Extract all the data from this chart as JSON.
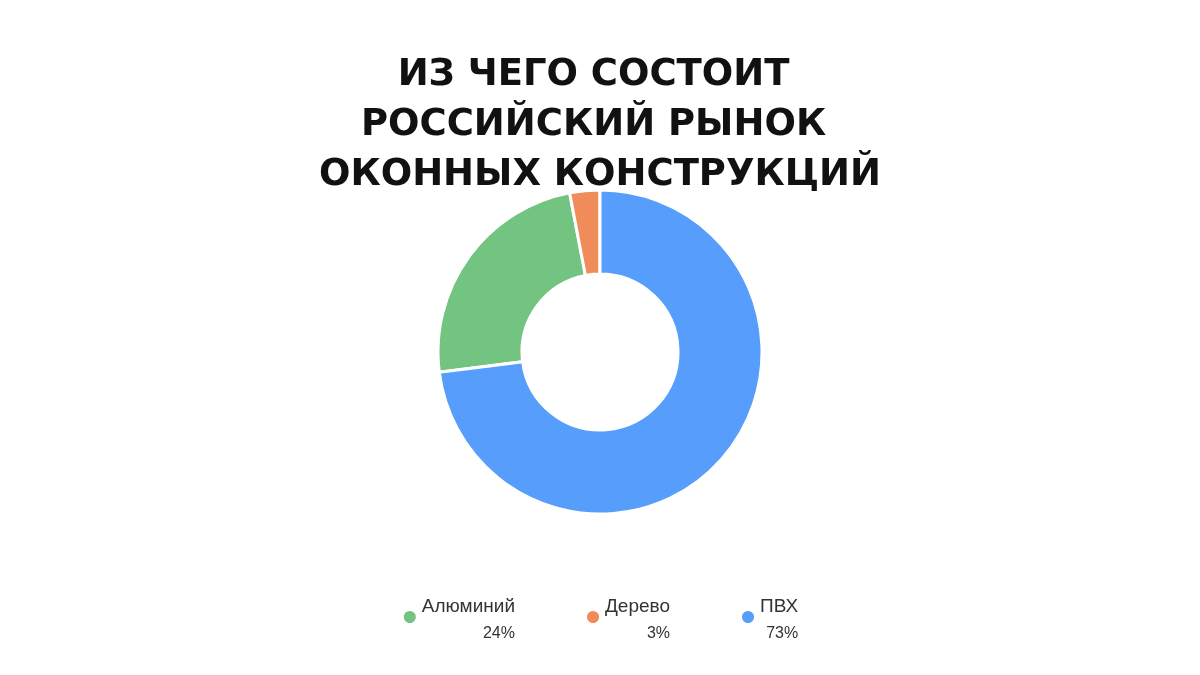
{
  "chart_data": {
    "type": "donut",
    "title": "ИЗ ЧЕГО СОСТОИТ РОССИЙСКИЙ РЫНОК ОКОННЫХ КОНСТРУКЦИЙ",
    "categories": [
      "Алюминий",
      "Дерево",
      "ПВХ"
    ],
    "values": [
      24,
      3,
      73
    ],
    "colors": [
      "#73c480",
      "#f08c5a",
      "#579dfb"
    ],
    "value_labels": [
      "24%",
      "3%",
      "73%"
    ],
    "legend": "bottom"
  }
}
